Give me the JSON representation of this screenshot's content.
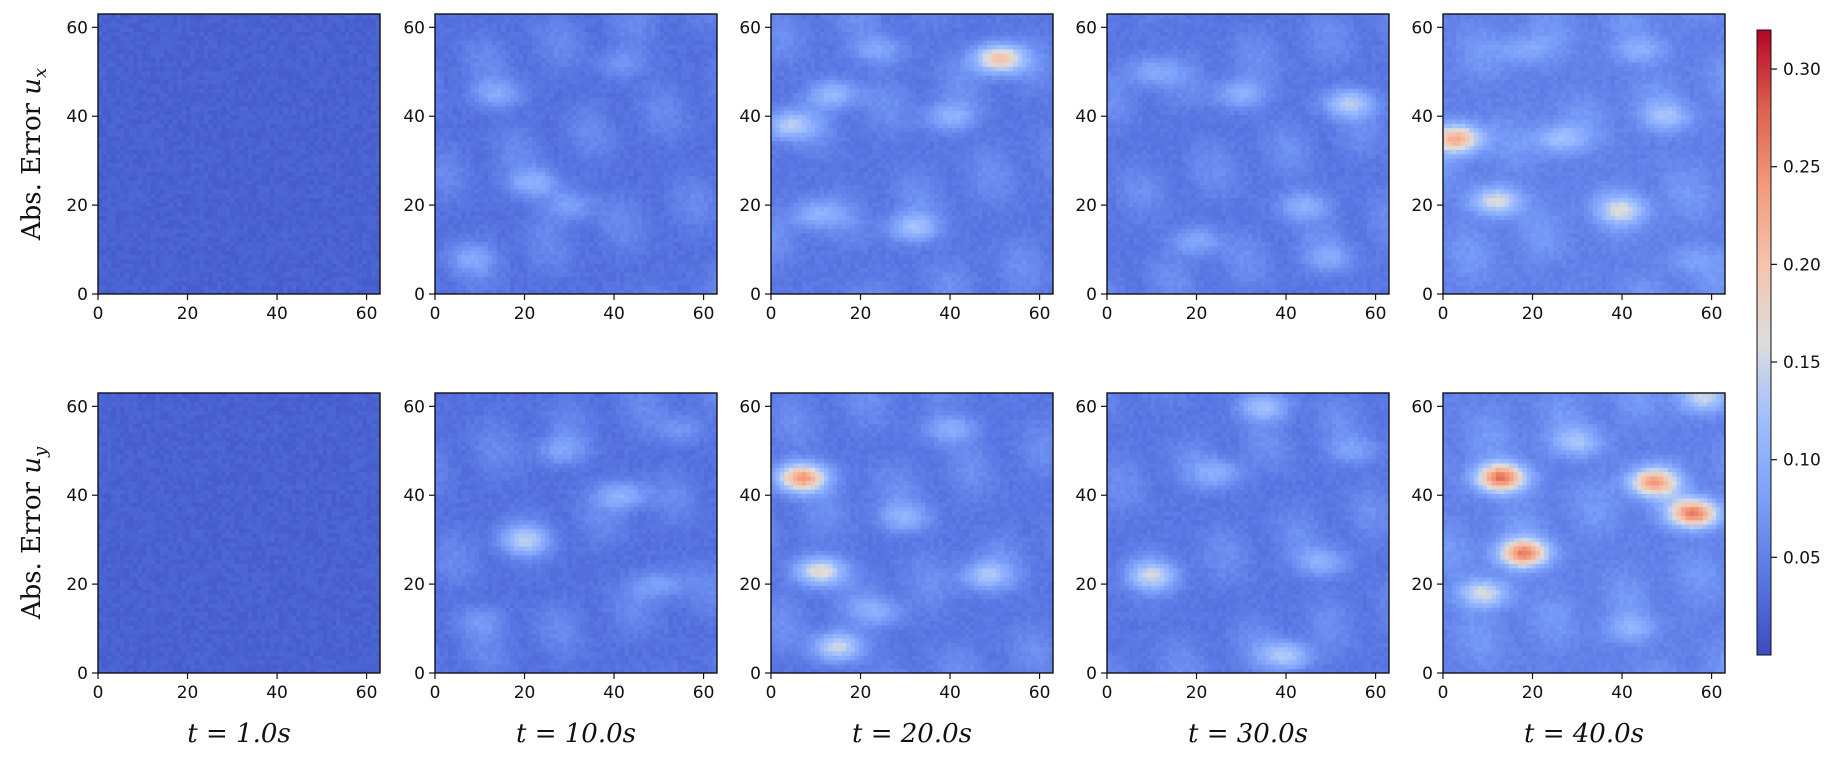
{
  "chart_data": {
    "type": "heatmap",
    "colormap": "coolwarm",
    "colors": {
      "low": "#3b4cc0",
      "mid": "#dddddd",
      "high": "#b40426"
    },
    "rows": [
      {
        "label": "Abs. Error ",
        "variable": "u",
        "subscript": "x"
      },
      {
        "label": "Abs. Error ",
        "variable": "u",
        "subscript": "y"
      }
    ],
    "columns": [
      {
        "label": "t = 1.0s"
      },
      {
        "label": "t = 10.0s"
      },
      {
        "label": "t = 20.0s"
      },
      {
        "label": "t = 30.0s"
      },
      {
        "label": "t = 40.0s"
      }
    ],
    "xlim": [
      0,
      63
    ],
    "ylim": [
      0,
      63
    ],
    "x_ticks": [
      "0",
      "20",
      "40",
      "60"
    ],
    "y_ticks": [
      "0",
      "20",
      "40",
      "60"
    ],
    "x_tick_values": [
      0,
      20,
      40,
      60
    ],
    "y_tick_values": [
      0,
      20,
      40,
      60
    ],
    "colorbar": {
      "range": [
        0.0,
        0.32
      ],
      "ticks": [
        "0.05",
        "0.10",
        "0.15",
        "0.20",
        "0.25",
        "0.30"
      ],
      "tick_values": [
        0.05,
        0.1,
        0.15,
        0.2,
        0.25,
        0.3
      ]
    },
    "panels": [
      {
        "row": 0,
        "col": 0,
        "baseline": 0.02,
        "hotspots": []
      },
      {
        "row": 0,
        "col": 1,
        "baseline": 0.035,
        "hotspots": [
          {
            "x": 22,
            "y": 25,
            "value": 0.1
          },
          {
            "x": 30,
            "y": 20,
            "value": 0.08
          },
          {
            "x": 14,
            "y": 45,
            "value": 0.09
          },
          {
            "x": 42,
            "y": 52,
            "value": 0.07
          },
          {
            "x": 8,
            "y": 8,
            "value": 0.07
          }
        ]
      },
      {
        "row": 0,
        "col": 2,
        "baseline": 0.04,
        "hotspots": [
          {
            "x": 51,
            "y": 53,
            "value": 0.2
          },
          {
            "x": 4,
            "y": 38,
            "value": 0.13
          },
          {
            "x": 32,
            "y": 15,
            "value": 0.12
          },
          {
            "x": 14,
            "y": 45,
            "value": 0.11
          },
          {
            "x": 10,
            "y": 18,
            "value": 0.1
          },
          {
            "x": 40,
            "y": 40,
            "value": 0.1
          },
          {
            "x": 24,
            "y": 55,
            "value": 0.09
          }
        ]
      },
      {
        "row": 0,
        "col": 3,
        "baseline": 0.04,
        "hotspots": [
          {
            "x": 54,
            "y": 43,
            "value": 0.13
          },
          {
            "x": 30,
            "y": 45,
            "value": 0.1
          },
          {
            "x": 44,
            "y": 20,
            "value": 0.1
          },
          {
            "x": 20,
            "y": 12,
            "value": 0.09
          },
          {
            "x": 10,
            "y": 50,
            "value": 0.09
          },
          {
            "x": 50,
            "y": 8,
            "value": 0.08
          }
        ]
      },
      {
        "row": 0,
        "col": 4,
        "baseline": 0.05,
        "hotspots": [
          {
            "x": 3,
            "y": 35,
            "value": 0.22
          },
          {
            "x": 12,
            "y": 21,
            "value": 0.16
          },
          {
            "x": 40,
            "y": 19,
            "value": 0.14
          },
          {
            "x": 26,
            "y": 35,
            "value": 0.12
          },
          {
            "x": 50,
            "y": 40,
            "value": 0.11
          },
          {
            "x": 44,
            "y": 55,
            "value": 0.1
          },
          {
            "x": 18,
            "y": 55,
            "value": 0.09
          },
          {
            "x": 56,
            "y": 8,
            "value": 0.08
          }
        ]
      },
      {
        "row": 1,
        "col": 0,
        "baseline": 0.02,
        "hotspots": []
      },
      {
        "row": 1,
        "col": 1,
        "baseline": 0.035,
        "hotspots": [
          {
            "x": 20,
            "y": 30,
            "value": 0.12
          },
          {
            "x": 42,
            "y": 40,
            "value": 0.1
          },
          {
            "x": 28,
            "y": 50,
            "value": 0.08
          },
          {
            "x": 50,
            "y": 20,
            "value": 0.08
          },
          {
            "x": 10,
            "y": 12,
            "value": 0.07
          },
          {
            "x": 55,
            "y": 55,
            "value": 0.07
          }
        ]
      },
      {
        "row": 1,
        "col": 2,
        "baseline": 0.04,
        "hotspots": [
          {
            "x": 7,
            "y": 44,
            "value": 0.24
          },
          {
            "x": 11,
            "y": 23,
            "value": 0.17
          },
          {
            "x": 15,
            "y": 6,
            "value": 0.15
          },
          {
            "x": 48,
            "y": 22,
            "value": 0.12
          },
          {
            "x": 30,
            "y": 35,
            "value": 0.1
          },
          {
            "x": 40,
            "y": 55,
            "value": 0.1
          },
          {
            "x": 24,
            "y": 14,
            "value": 0.09
          }
        ]
      },
      {
        "row": 1,
        "col": 3,
        "baseline": 0.04,
        "hotspots": [
          {
            "x": 10,
            "y": 22,
            "value": 0.13
          },
          {
            "x": 35,
            "y": 60,
            "value": 0.12
          },
          {
            "x": 40,
            "y": 4,
            "value": 0.13
          },
          {
            "x": 48,
            "y": 25,
            "value": 0.1
          },
          {
            "x": 25,
            "y": 45,
            "value": 0.09
          },
          {
            "x": 55,
            "y": 50,
            "value": 0.08
          }
        ]
      },
      {
        "row": 1,
        "col": 4,
        "baseline": 0.05,
        "hotspots": [
          {
            "x": 13,
            "y": 44,
            "value": 0.27
          },
          {
            "x": 18,
            "y": 27,
            "value": 0.25
          },
          {
            "x": 56,
            "y": 36,
            "value": 0.26
          },
          {
            "x": 47,
            "y": 43,
            "value": 0.22
          },
          {
            "x": 9,
            "y": 18,
            "value": 0.16
          },
          {
            "x": 30,
            "y": 52,
            "value": 0.12
          },
          {
            "x": 42,
            "y": 10,
            "value": 0.1
          },
          {
            "x": 58,
            "y": 62,
            "value": 0.14
          }
        ]
      }
    ]
  }
}
